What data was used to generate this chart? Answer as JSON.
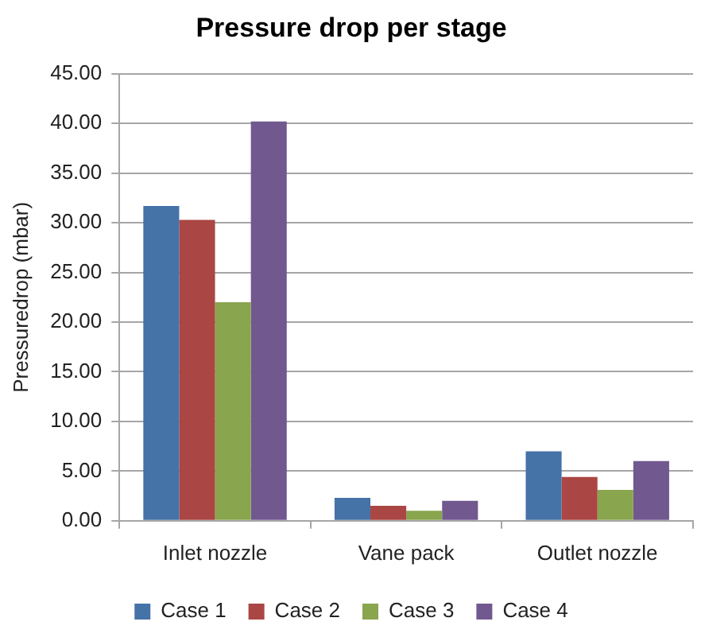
{
  "chart_data": {
    "type": "bar",
    "title": "Pressure drop per stage",
    "ylabel": "Pressuredrop (mbar)",
    "categories": [
      "Inlet nozzle",
      "Vane pack",
      "Outlet nozzle"
    ],
    "series": [
      {
        "name": "Case 1",
        "color": "#4572a7",
        "values": [
          31.7,
          2.3,
          7.0
        ]
      },
      {
        "name": "Case 2",
        "color": "#aa4643",
        "values": [
          30.3,
          1.5,
          4.4
        ]
      },
      {
        "name": "Case 3",
        "color": "#89a54e",
        "values": [
          22.0,
          1.0,
          3.1
        ]
      },
      {
        "name": "Case 4",
        "color": "#71588f",
        "values": [
          40.2,
          2.0,
          6.0
        ]
      }
    ],
    "ylim": [
      0,
      45
    ],
    "yticks": [
      {
        "value": 0,
        "label": "0.00"
      },
      {
        "value": 5,
        "label": "5.00"
      },
      {
        "value": 10,
        "label": "10.00"
      },
      {
        "value": 15,
        "label": "15.00"
      },
      {
        "value": 20,
        "label": "20.00"
      },
      {
        "value": 25,
        "label": "25.00"
      },
      {
        "value": 30,
        "label": "30.00"
      },
      {
        "value": 35,
        "label": "35.00"
      },
      {
        "value": 40,
        "label": "40.00"
      },
      {
        "value": 45,
        "label": "45.00"
      }
    ],
    "grid": "y",
    "legend": "bottom"
  }
}
